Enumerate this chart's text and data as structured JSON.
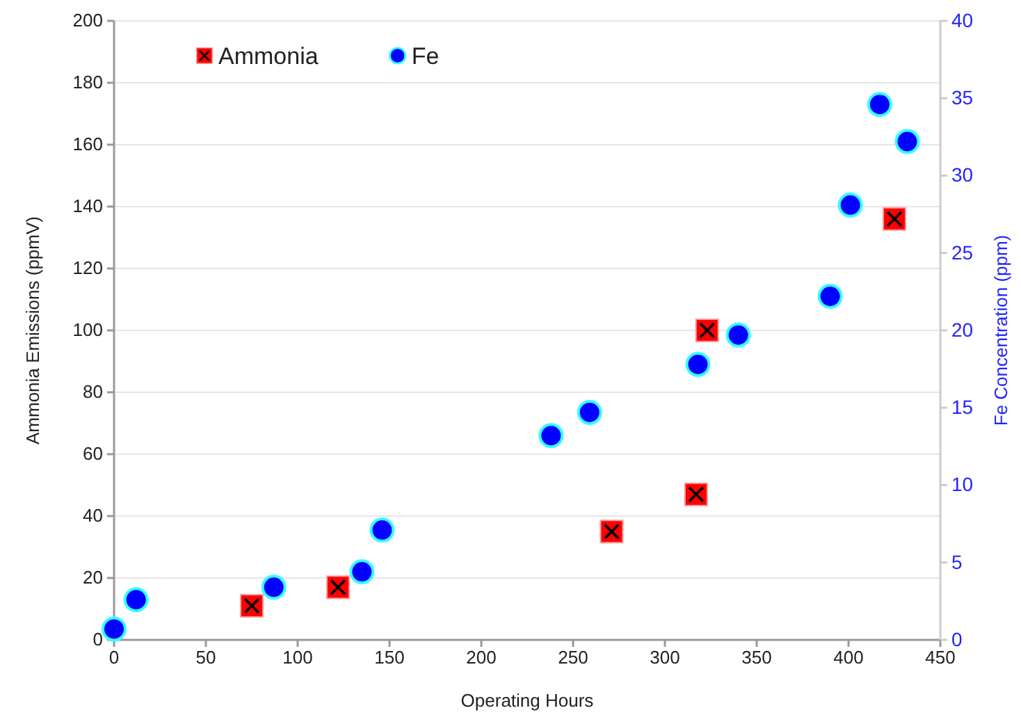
{
  "chart_data": {
    "type": "scatter",
    "xlabel": "Operating Hours",
    "ylabel": "Ammonia Emissions (ppmV)",
    "y2label": "Fe Concentration (ppm)",
    "xlim": [
      0,
      450
    ],
    "xticks": [
      0,
      50,
      100,
      150,
      200,
      250,
      300,
      350,
      400,
      450
    ],
    "ylim": [
      0,
      200
    ],
    "yticks": [
      0,
      20,
      40,
      60,
      80,
      100,
      120,
      140,
      160,
      180,
      200
    ],
    "y2lim": [
      0,
      40
    ],
    "y2ticks": [
      0,
      5,
      10,
      15,
      20,
      25,
      30,
      35,
      40
    ],
    "grid": "y",
    "legend": "top left",
    "series": [
      {
        "name": "Ammonia",
        "color": "#ff0000",
        "marker": "square",
        "x": [
          75,
          122,
          271,
          317,
          323,
          425
        ],
        "values": [
          11,
          17,
          35,
          47,
          100,
          136
        ]
      },
      {
        "name": "Fe",
        "color": "#0000ff",
        "marker": "circle",
        "axis": "y2",
        "x": [
          0,
          12,
          87,
          135,
          146,
          238,
          259,
          318,
          340,
          390,
          401,
          417,
          432
        ],
        "values": [
          0.7,
          2.6,
          3.4,
          4.4,
          7.1,
          13.2,
          14.7,
          17.8,
          19.7,
          22.2,
          28.1,
          34.6,
          32.2
        ]
      }
    ]
  }
}
